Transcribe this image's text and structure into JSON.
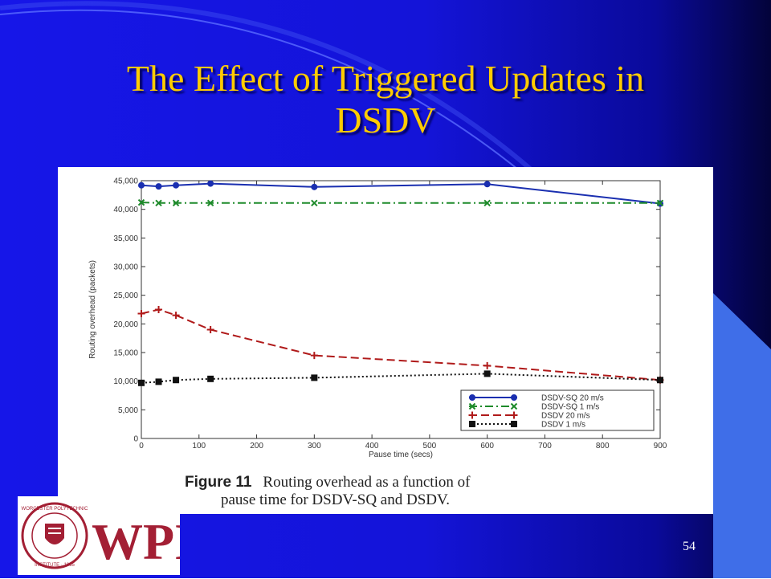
{
  "slide": {
    "title_line1": "The Effect of Triggered Updates in",
    "title_line2": "DSDV",
    "page_number": "54",
    "background_color": "#1616e8",
    "title_color": "#ffcc00"
  },
  "figure": {
    "caption_label": "Figure 11",
    "caption_line1": "Routing overhead as a function of",
    "caption_line2": "pause time for DSDV-SQ and DSDV."
  },
  "logo": {
    "text": "WPI",
    "seal_text": "WORCESTER POLYTECHNIC INSTITUTE · 1865",
    "color": "#a31f34"
  },
  "chart_data": {
    "type": "line",
    "xlabel": "Pause time (secs)",
    "ylabel": "Routing overhead (packets)",
    "xlim": [
      0,
      900
    ],
    "ylim": [
      0,
      45000
    ],
    "x_ticks": [
      0,
      100,
      200,
      300,
      400,
      500,
      600,
      700,
      800,
      900
    ],
    "y_ticks": [
      0,
      5000,
      10000,
      15000,
      20000,
      25000,
      30000,
      35000,
      40000,
      45000
    ],
    "x_tick_labels": [
      "0",
      "100",
      "200",
      "300",
      "400",
      "500",
      "600",
      "700",
      "800",
      "900"
    ],
    "y_tick_labels": [
      "0",
      "5,000",
      "10,000",
      "15,000",
      "20,000",
      "25,000",
      "30,000",
      "35,000",
      "40,000",
      "45,000"
    ],
    "grid": false,
    "legend_position": "bottom-right",
    "series": [
      {
        "name": "DSDV-SQ 20 m/s",
        "color": "#1a2fb0",
        "dash": "solid",
        "marker": "circle",
        "points": [
          [
            0,
            44200
          ],
          [
            30,
            44000
          ],
          [
            60,
            44200
          ],
          [
            120,
            44500
          ],
          [
            300,
            43900
          ],
          [
            600,
            44400
          ],
          [
            900,
            41000
          ]
        ]
      },
      {
        "name": "DSDV-SQ 1 m/s",
        "color": "#1d8a2a",
        "dash": "dashdot",
        "marker": "x",
        "points": [
          [
            0,
            41200
          ],
          [
            30,
            41100
          ],
          [
            60,
            41100
          ],
          [
            120,
            41100
          ],
          [
            300,
            41100
          ],
          [
            600,
            41100
          ],
          [
            900,
            41100
          ]
        ]
      },
      {
        "name": "DSDV 20 m/s",
        "color": "#b01a1a",
        "dash": "dashed",
        "marker": "plus",
        "points": [
          [
            0,
            21800
          ],
          [
            30,
            22500
          ],
          [
            60,
            21500
          ],
          [
            120,
            19000
          ],
          [
            300,
            14500
          ],
          [
            600,
            12700
          ],
          [
            900,
            10200
          ]
        ]
      },
      {
        "name": "DSDV 1 m/s",
        "color": "#111111",
        "dash": "dotted",
        "marker": "square",
        "points": [
          [
            0,
            9700
          ],
          [
            30,
            9900
          ],
          [
            60,
            10200
          ],
          [
            120,
            10400
          ],
          [
            300,
            10600
          ],
          [
            600,
            11300
          ],
          [
            900,
            10200
          ]
        ]
      }
    ]
  }
}
